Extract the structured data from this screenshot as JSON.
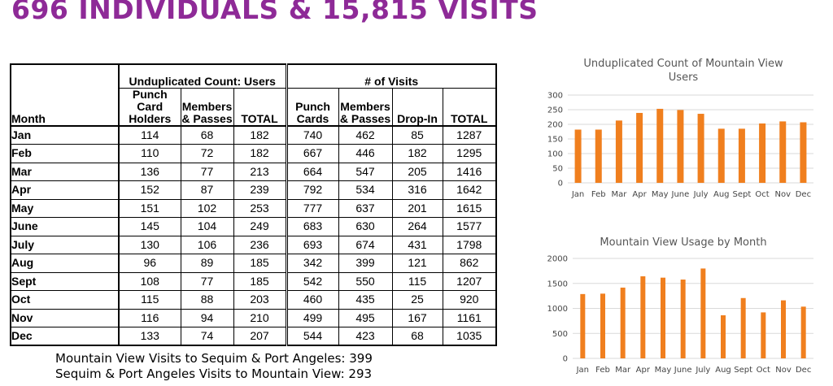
{
  "title": "696 INDIVIDUALS & 15,815 VISITS",
  "table": {
    "group_users": "Unduplicated Count: Users",
    "group_visits": "# of Visits",
    "headers": [
      "Month",
      "Punch Card Holders",
      "Members & Passes",
      "TOTAL",
      "Punch Cards",
      "Members & Passes",
      "Drop-In",
      "TOTAL"
    ],
    "rows": [
      [
        "Jan",
        "114",
        "68",
        "182",
        "740",
        "462",
        "85",
        "1287"
      ],
      [
        "Feb",
        "110",
        "72",
        "182",
        "667",
        "446",
        "182",
        "1295"
      ],
      [
        "Mar",
        "136",
        "77",
        "213",
        "664",
        "547",
        "205",
        "1416"
      ],
      [
        "Apr",
        "152",
        "87",
        "239",
        "792",
        "534",
        "316",
        "1642"
      ],
      [
        "May",
        "151",
        "102",
        "253",
        "777",
        "637",
        "201",
        "1615"
      ],
      [
        "June",
        "145",
        "104",
        "249",
        "683",
        "630",
        "264",
        "1577"
      ],
      [
        "July",
        "130",
        "106",
        "236",
        "693",
        "674",
        "431",
        "1798"
      ],
      [
        "Aug",
        "96",
        "89",
        "185",
        "342",
        "399",
        "121",
        "862"
      ],
      [
        "Sept",
        "108",
        "77",
        "185",
        "542",
        "550",
        "115",
        "1207"
      ],
      [
        "Oct",
        "115",
        "88",
        "203",
        "460",
        "435",
        "25",
        "920"
      ],
      [
        "Nov",
        "116",
        "94",
        "210",
        "499",
        "495",
        "167",
        "1161"
      ],
      [
        "Dec",
        "133",
        "74",
        "207",
        "544",
        "423",
        "68",
        "1035"
      ]
    ]
  },
  "footnotes": [
    "Mountain View Visits to Sequim & Port Angeles: 399",
    "Sequim & Port Angeles Visits to Mountain View: 293"
  ],
  "chart_data": [
    {
      "type": "bar",
      "title": "Unduplicated Count of Mountain View Users",
      "title_lines": [
        "Unduplicated Count of Mountain View",
        "Users"
      ],
      "categories": [
        "Jan",
        "Feb",
        "Mar",
        "Apr",
        "May",
        "June",
        "July",
        "Aug",
        "Sept",
        "Oct",
        "Nov",
        "Dec"
      ],
      "values": [
        182,
        182,
        213,
        239,
        253,
        249,
        236,
        185,
        185,
        203,
        210,
        207
      ],
      "yticks": [
        0,
        50,
        100,
        150,
        200,
        250,
        300
      ],
      "ylim": [
        0,
        300
      ],
      "grid": true,
      "color": "#f07f1e"
    },
    {
      "type": "bar",
      "title": "Mountain View Usage by Month",
      "title_lines": [
        "Mountain View Usage by Month"
      ],
      "categories": [
        "Jan",
        "Feb",
        "Mar",
        "Apr",
        "May",
        "June",
        "July",
        "Aug",
        "Sept",
        "Oct",
        "Nov",
        "Dec"
      ],
      "values": [
        1287,
        1295,
        1416,
        1642,
        1615,
        1577,
        1798,
        862,
        1207,
        920,
        1161,
        1035
      ],
      "yticks": [
        0,
        500,
        1000,
        1500,
        2000
      ],
      "ylim": [
        0,
        2000
      ],
      "grid": true,
      "color": "#f07f1e"
    }
  ]
}
